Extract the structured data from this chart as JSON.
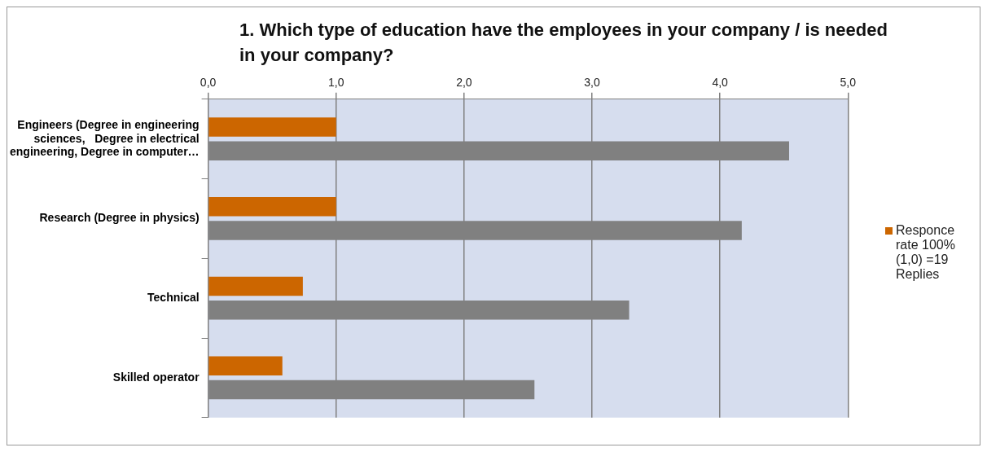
{
  "chart_data": {
    "type": "bar",
    "orientation": "horizontal",
    "title": "1. Which type of education have the employees in your company / is needed in your company?",
    "categories": [
      "Engineers (Degree in engineering sciences,   Degree in electrical engineering, Degree in computer…",
      "Research (Degree in physics)",
      "Technical",
      "Skilled operator"
    ],
    "series": [
      {
        "name": "Responce rate 100% (1,0) =19 Replies",
        "color": "#cc6600",
        "values": [
          1.0,
          1.0,
          0.74,
          0.58
        ]
      },
      {
        "color": "#808080",
        "values": [
          4.54,
          4.17,
          3.29,
          2.55
        ]
      }
    ],
    "xlim": [
      0,
      5
    ],
    "xticks": [
      {
        "value": 0,
        "label": "0,0"
      },
      {
        "value": 1,
        "label": "1,0"
      },
      {
        "value": 2,
        "label": "2,0"
      },
      {
        "value": 3,
        "label": "3,0"
      },
      {
        "value": 4,
        "label": "4,0"
      },
      {
        "value": 5,
        "label": "5,0"
      }
    ],
    "grid": "x",
    "legend": "right"
  }
}
